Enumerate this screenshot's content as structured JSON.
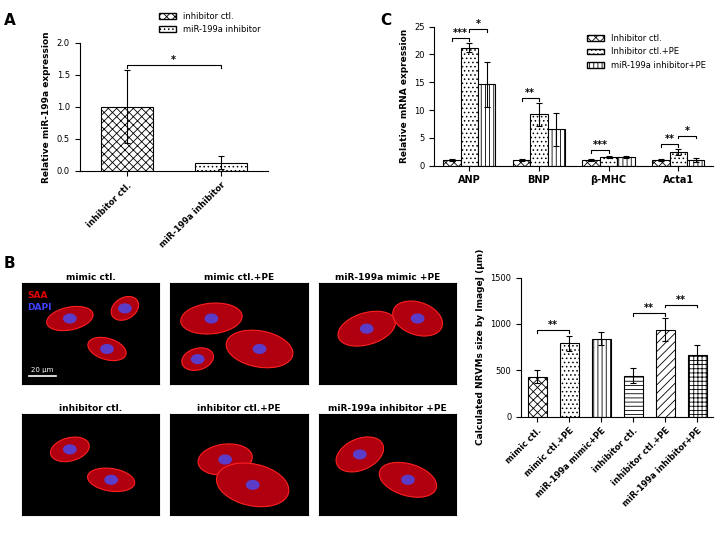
{
  "figure": {
    "panel_labels": [
      "A",
      "B",
      "C"
    ],
    "micrographs": {
      "titles": [
        "mimic ctl.",
        "mimic ctl.+PE",
        "miR-199a mimic +PE",
        "inhibitor ctl.",
        "inhibitor ctl.+PE",
        "miR-199a inhibitor +PE"
      ],
      "stain_labels": [
        {
          "text": "SAA",
          "color": "#e00000"
        },
        {
          "text": "DAPI",
          "color": "#4040ff"
        }
      ],
      "scale_bar": "20 μm"
    }
  },
  "chart_data": [
    {
      "type": "bar",
      "y_label": "Relative miR-199a expression",
      "categories": [
        "inhibitor ctl.",
        "miR-199a inhibitor"
      ],
      "values": [
        1.0,
        0.13
      ],
      "errors": [
        0.57,
        0.1
      ],
      "colors": [
        "#ffffff",
        "#ffffff"
      ],
      "ylim": [
        0,
        2.0
      ],
      "yticks": [
        {
          "value": 0,
          "label": "0.0"
        },
        {
          "value": 0.5,
          "label": "0.5"
        },
        {
          "value": 1.0,
          "label": "1.0"
        },
        {
          "value": 1.5,
          "label": "1.5"
        },
        {
          "value": 2.0,
          "label": "2.0"
        }
      ],
      "legend": "upper right",
      "grid": false,
      "significance": [
        {
          "from": 0,
          "to": 1,
          "label": "*"
        }
      ]
    },
    {
      "type": "bar",
      "y_label": "Calculated NRVMs size by ImageJ (μm)",
      "categories": [
        "mimic ctl.",
        "mimic ctl.+PE",
        "miR-199a mimic+PE",
        "inhibitor ctl.",
        "inhibitor ctl.+PE",
        "miR-199a inhibitor+PE"
      ],
      "values": [
        430,
        790,
        840,
        440,
        940,
        670
      ],
      "errors": [
        70,
        80,
        70,
        80,
        120,
        100
      ],
      "colors": [
        "#ffffff",
        "#ffffff",
        "#ffffff",
        "#ffffff",
        "#ffffff",
        "#ffffff"
      ],
      "ylim": [
        0,
        1500
      ],
      "yticks": [
        0,
        500,
        1000,
        1500
      ],
      "grid": false,
      "significance": [
        {
          "from": 0,
          "to": 1,
          "label": "**"
        },
        {
          "from": 3,
          "to": 4,
          "label": "**"
        },
        {
          "from": 4,
          "to": 5,
          "label": "**"
        }
      ]
    },
    {
      "type": "grouped_bar",
      "y_label": "Relative mRNA expression",
      "categories": [
        "ANP",
        "BNP",
        "β-MHC",
        "Acta1"
      ],
      "series": [
        {
          "name": "Inhibitor ctl.",
          "color": "#ffffff",
          "values": [
            1,
            1,
            1,
            1
          ],
          "errors": [
            0.2,
            0.2,
            0.1,
            0.1
          ]
        },
        {
          "name": "Inhibitor ctl.+PE",
          "color": "#ffffff",
          "values": [
            21.2,
            9.2,
            1.6,
            2.4
          ],
          "errors": [
            0.8,
            2.0,
            0.2,
            0.5
          ]
        },
        {
          "name": "miR-199a inhibitor+PE",
          "color": "#ffffff",
          "values": [
            14.6,
            6.5,
            1.5,
            1.0
          ],
          "errors": [
            4.0,
            3.0,
            0.2,
            0.4
          ]
        }
      ],
      "ylim": [
        0,
        25
      ],
      "yticks": [
        0,
        5,
        10,
        15,
        20,
        25
      ],
      "legend": "upper right",
      "grid": false,
      "significance": [
        {
          "category": 0,
          "from": 0,
          "to": 1,
          "label": "***"
        },
        {
          "category": 0,
          "from": 1,
          "to": 2,
          "label": "*"
        },
        {
          "category": 1,
          "from": 0,
          "to": 1,
          "label": "**"
        },
        {
          "category": 2,
          "from": 0,
          "to": 1,
          "label": "***"
        },
        {
          "category": 3,
          "from": 0,
          "to": 1,
          "label": "**"
        },
        {
          "category": 3,
          "from": 1,
          "to": 2,
          "label": "*"
        }
      ]
    }
  ]
}
